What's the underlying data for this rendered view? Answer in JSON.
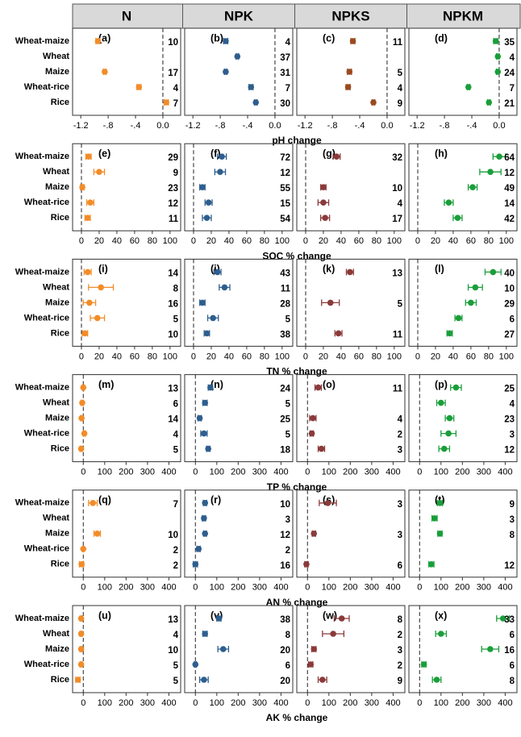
{
  "columns": [
    "N",
    "NPK",
    "NPKS",
    "NPKM"
  ],
  "chart_data": [
    {
      "type": "dot",
      "xlabel": "pH change",
      "categories": [
        "Wheat-maize",
        "Wheat",
        "Maize",
        "Wheat-rice",
        "Rice"
      ],
      "xlim": [
        -1.32,
        0.26
      ],
      "xticks": [
        {
          "value": -1.2,
          "label": "-1.2"
        },
        {
          "value": -0.8,
          "label": "-.8"
        },
        {
          "value": -0.4,
          "label": "-.4"
        },
        {
          "value": 0,
          "label": "0.0"
        }
      ],
      "series": [
        {
          "label": "(a)",
          "color": "#f28c28",
          "values": [
            -0.95,
            null,
            -0.85,
            -0.35,
            0.05
          ],
          "errors": [
            0.03,
            null,
            0.02,
            0.03,
            0.03
          ],
          "counts": [
            10,
            null,
            17,
            4,
            7
          ]
        },
        {
          "label": "(b)",
          "color": "#2e5e8e",
          "values": [
            -0.72,
            -0.55,
            -0.72,
            -0.35,
            -0.28
          ],
          "errors": [
            0.03,
            0.02,
            0.02,
            0.03,
            0.02
          ],
          "counts": [
            4,
            37,
            31,
            7,
            30
          ]
        },
        {
          "label": "(c)",
          "color": "#9a4a1e",
          "values": [
            -0.5,
            null,
            -0.55,
            -0.57,
            -0.2
          ],
          "errors": [
            0.03,
            null,
            0.03,
            0.03,
            0.02
          ],
          "counts": [
            11,
            null,
            5,
            4,
            9
          ]
        },
        {
          "label": "(d)",
          "color": "#1a9e3a",
          "values": [
            -0.05,
            -0.02,
            -0.02,
            -0.45,
            -0.15
          ],
          "errors": [
            0.03,
            0.02,
            0.02,
            0.02,
            0.02
          ],
          "counts": [
            35,
            4,
            24,
            7,
            21
          ]
        }
      ]
    },
    {
      "type": "dot",
      "xlabel": "SOC % change",
      "categories": [
        "Wheat-maize",
        "Wheat",
        "Maize",
        "Wheat-rice",
        "Rice"
      ],
      "xlim": [
        -10,
        112
      ],
      "xticks": [
        0,
        20,
        40,
        60,
        80,
        100
      ],
      "series": [
        {
          "label": "(e)",
          "color": "#f28c28",
          "values": [
            8,
            20,
            1,
            10,
            7
          ],
          "errors": [
            3,
            6,
            2,
            4,
            3
          ],
          "counts": [
            29,
            9,
            23,
            12,
            11
          ]
        },
        {
          "label": "(f)",
          "color": "#2e5e8e",
          "values": [
            32,
            30,
            10,
            17,
            15
          ],
          "errors": [
            5,
            6,
            3,
            4,
            5
          ],
          "counts": [
            72,
            12,
            55,
            15,
            54
          ]
        },
        {
          "label": "(g)",
          "color": "#8b3a3a",
          "values": [
            35,
            null,
            20,
            20,
            22
          ],
          "errors": [
            4,
            null,
            3,
            6,
            5
          ],
          "counts": [
            32,
            null,
            10,
            4,
            17
          ]
        },
        {
          "label": "(h)",
          "color": "#1a9e3a",
          "values": [
            92,
            82,
            62,
            35,
            45
          ],
          "errors": [
            7,
            12,
            5,
            5,
            5
          ],
          "counts": [
            64,
            12,
            49,
            14,
            42
          ]
        }
      ]
    },
    {
      "type": "dot",
      "xlabel": "TN % change",
      "categories": [
        "Wheat-maize",
        "Wheat",
        "Maize",
        "Wheat-rice",
        "Rice"
      ],
      "xlim": [
        -10,
        112
      ],
      "xticks": [
        0,
        20,
        40,
        60,
        80,
        100
      ],
      "series": [
        {
          "label": "(i)",
          "color": "#f28c28",
          "values": [
            7,
            22,
            9,
            18,
            4
          ],
          "errors": [
            4,
            14,
            7,
            8,
            3
          ],
          "counts": [
            14,
            8,
            16,
            5,
            10
          ]
        },
        {
          "label": "(j)",
          "color": "#2e5e8e",
          "values": [
            27,
            35,
            10,
            22,
            15
          ],
          "errors": [
            4,
            6,
            3,
            6,
            3
          ],
          "counts": [
            43,
            11,
            28,
            5,
            38
          ]
        },
        {
          "label": "(k)",
          "color": "#8b3a3a",
          "values": [
            50,
            null,
            28,
            null,
            37
          ],
          "errors": [
            4,
            null,
            10,
            null,
            4
          ],
          "counts": [
            13,
            null,
            5,
            null,
            11
          ]
        },
        {
          "label": "(l)",
          "color": "#1a9e3a",
          "values": [
            85,
            65,
            60,
            46,
            36
          ],
          "errors": [
            9,
            8,
            6,
            4,
            3
          ],
          "counts": [
            40,
            10,
            29,
            6,
            27
          ]
        }
      ]
    },
    {
      "type": "dot",
      "xlabel": "TP % change",
      "categories": [
        "Wheat-maize",
        "Wheat",
        "Maize",
        "Wheat-rice",
        "Rice"
      ],
      "xlim": [
        -50,
        455
      ],
      "xticks": [
        0,
        100,
        200,
        300,
        400
      ],
      "series": [
        {
          "label": "(m)",
          "color": "#f28c28",
          "values": [
            0,
            -5,
            -8,
            5,
            -10
          ],
          "errors": [
            5,
            5,
            5,
            5,
            5
          ],
          "counts": [
            13,
            6,
            14,
            4,
            5
          ]
        },
        {
          "label": "(n)",
          "color": "#2e5e8e",
          "values": [
            70,
            45,
            20,
            40,
            60
          ],
          "errors": [
            10,
            10,
            8,
            15,
            8
          ],
          "counts": [
            24,
            5,
            25,
            5,
            18
          ]
        },
        {
          "label": "(o)",
          "color": "#8b3a3a",
          "values": [
            50,
            null,
            25,
            20,
            65
          ],
          "errors": [
            15,
            null,
            15,
            8,
            15
          ],
          "counts": [
            11,
            null,
            4,
            2,
            3
          ]
        },
        {
          "label": "(p)",
          "color": "#1a9e3a",
          "values": [
            170,
            100,
            140,
            135,
            115
          ],
          "errors": [
            25,
            20,
            20,
            35,
            25
          ],
          "counts": [
            25,
            4,
            23,
            3,
            12
          ]
        }
      ]
    },
    {
      "type": "dot",
      "xlabel": "AN % change",
      "categories": [
        "Wheat-maize",
        "Wheat",
        "Maize",
        "Wheat-rice",
        "Rice"
      ],
      "xlim": [
        -50,
        455
      ],
      "xticks": [
        0,
        100,
        200,
        300,
        400
      ],
      "series": [
        {
          "label": "(q)",
          "color": "#f28c28",
          "values": [
            45,
            null,
            65,
            0,
            -8
          ],
          "errors": [
            20,
            null,
            15,
            4,
            10
          ],
          "counts": [
            7,
            null,
            10,
            2,
            2
          ]
        },
        {
          "label": "(r)",
          "color": "#2e5e8e",
          "values": [
            45,
            40,
            45,
            15,
            0
          ],
          "errors": [
            8,
            8,
            7,
            8,
            10
          ],
          "counts": [
            10,
            3,
            12,
            2,
            16
          ]
        },
        {
          "label": "(s)",
          "color": "#8b3a3a",
          "values": [
            95,
            null,
            30,
            null,
            -5
          ],
          "errors": [
            40,
            null,
            8,
            null,
            8
          ],
          "counts": [
            3,
            null,
            3,
            null,
            6
          ]
        },
        {
          "label": "(t)",
          "color": "#1a9e3a",
          "values": [
            95,
            70,
            95,
            null,
            55
          ],
          "errors": [
            12,
            12,
            10,
            null,
            12
          ],
          "counts": [
            9,
            3,
            8,
            null,
            12
          ]
        }
      ]
    },
    {
      "type": "dot",
      "xlabel": "AK % change",
      "categories": [
        "Wheat-maize",
        "Wheat",
        "Maize",
        "Wheat-rice",
        "Rice"
      ],
      "xlim": [
        -50,
        455
      ],
      "xticks": [
        0,
        100,
        200,
        300,
        400
      ],
      "series": [
        {
          "label": "(u)",
          "color": "#f28c28",
          "values": [
            -10,
            -10,
            -10,
            -10,
            -25
          ],
          "errors": [
            5,
            5,
            5,
            5,
            10
          ],
          "counts": [
            13,
            4,
            10,
            5,
            5
          ]
        },
        {
          "label": "(v)",
          "color": "#2e5e8e",
          "values": [
            110,
            45,
            130,
            0,
            40
          ],
          "errors": [
            10,
            10,
            25,
            5,
            20
          ],
          "counts": [
            38,
            8,
            20,
            6,
            20
          ]
        },
        {
          "label": "(w)",
          "color": "#8b3a3a",
          "values": [
            160,
            120,
            30,
            15,
            70
          ],
          "errors": [
            35,
            50,
            10,
            10,
            20
          ],
          "counts": [
            8,
            2,
            3,
            2,
            9
          ]
        },
        {
          "label": "(x)",
          "color": "#1a9e3a",
          "values": [
            390,
            100,
            330,
            20,
            80
          ],
          "errors": [
            30,
            25,
            40,
            10,
            20
          ],
          "counts": [
            33,
            6,
            16,
            6,
            8
          ]
        }
      ]
    }
  ]
}
